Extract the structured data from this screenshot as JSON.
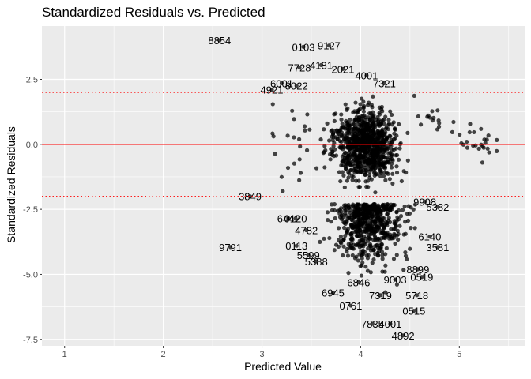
{
  "chart_data": {
    "type": "scatter",
    "title": "Standardized Residuals vs. Predicted",
    "xlabel": "Predicted Value",
    "ylabel": "Standardized Residuals",
    "xlim": [
      0.77,
      5.67
    ],
    "ylim": [
      -7.75,
      4.55
    ],
    "x_ticks": [
      1,
      2,
      3,
      4,
      5
    ],
    "x_tick_labels": [
      "1",
      "2",
      "3",
      "4",
      "5"
    ],
    "y_ticks": [
      2.5,
      0.0,
      -2.5,
      -5.0,
      -7.5
    ],
    "y_tick_labels": [
      "2.5",
      "0.0",
      "-2.5",
      "-5.0",
      "-7.5"
    ],
    "grid": true,
    "reference_lines": [
      {
        "y": 0,
        "style": "solid",
        "color": "#ff0000"
      },
      {
        "y": 2,
        "style": "dotted",
        "color": "#ff0000"
      },
      {
        "y": -2,
        "style": "dotted",
        "color": "#ff0000"
      }
    ],
    "point_color": "#000000",
    "labeled_points": [
      {
        "label": "8854",
        "x": 2.57,
        "y": 4.0
      },
      {
        "label": "0103",
        "x": 3.42,
        "y": 3.75
      },
      {
        "label": "9127",
        "x": 3.68,
        "y": 3.8
      },
      {
        "label": "7728",
        "x": 3.38,
        "y": 2.95
      },
      {
        "label": "4181",
        "x": 3.6,
        "y": 3.05
      },
      {
        "label": "2021",
        "x": 3.82,
        "y": 2.9
      },
      {
        "label": "4001",
        "x": 4.06,
        "y": 2.65
      },
      {
        "label": "7321",
        "x": 4.24,
        "y": 2.35
      },
      {
        "label": "6001",
        "x": 3.2,
        "y": 2.35
      },
      {
        "label": "8022",
        "x": 3.35,
        "y": 2.25
      },
      {
        "label": "4921",
        "x": 3.1,
        "y": 2.1
      },
      {
        "label": "3849",
        "x": 2.88,
        "y": -2.0
      },
      {
        "label": "6442",
        "x": 3.27,
        "y": -2.85
      },
      {
        "label": "0120",
        "x": 3.34,
        "y": -2.85
      },
      {
        "label": "4782",
        "x": 3.45,
        "y": -3.3
      },
      {
        "label": "9791",
        "x": 2.68,
        "y": -3.95
      },
      {
        "label": "0113",
        "x": 3.35,
        "y": -3.9
      },
      {
        "label": "5599",
        "x": 3.47,
        "y": -4.25
      },
      {
        "label": "5388",
        "x": 3.55,
        "y": -4.5
      },
      {
        "label": "9908",
        "x": 4.65,
        "y": -2.2
      },
      {
        "label": "5382",
        "x": 4.78,
        "y": -2.4
      },
      {
        "label": "6140",
        "x": 4.7,
        "y": -3.55
      },
      {
        "label": "3581",
        "x": 4.78,
        "y": -3.95
      },
      {
        "label": "8899",
        "x": 4.58,
        "y": -4.8
      },
      {
        "label": "0519",
        "x": 4.62,
        "y": -5.1
      },
      {
        "label": "9003",
        "x": 4.35,
        "y": -5.2
      },
      {
        "label": "6846",
        "x": 3.98,
        "y": -5.3
      },
      {
        "label": "6945",
        "x": 3.72,
        "y": -5.7
      },
      {
        "label": "7319",
        "x": 4.2,
        "y": -5.8
      },
      {
        "label": "5718",
        "x": 4.57,
        "y": -5.8
      },
      {
        "label": "0515",
        "x": 4.54,
        "y": -6.4
      },
      {
        "label": "0761",
        "x": 3.9,
        "y": -6.2
      },
      {
        "label": "7835",
        "x": 4.12,
        "y": -6.9
      },
      {
        "label": "4001",
        "x": 4.3,
        "y": -6.9
      },
      {
        "label": "4892",
        "x": 4.43,
        "y": -7.35
      }
    ]
  }
}
